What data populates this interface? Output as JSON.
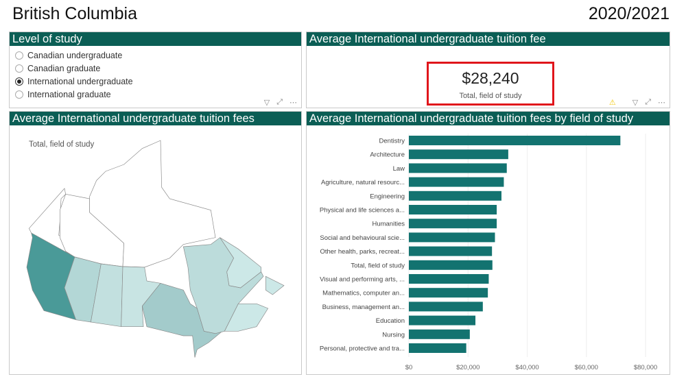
{
  "header": {
    "title": "British Columbia",
    "year": "2020/2021"
  },
  "level_panel": {
    "title": "Level of study",
    "options": [
      {
        "label": "Canadian undergraduate",
        "selected": false
      },
      {
        "label": "Canadian graduate",
        "selected": false
      },
      {
        "label": "International undergraduate",
        "selected": true
      },
      {
        "label": "International graduate",
        "selected": false
      }
    ]
  },
  "card_panel": {
    "title": "Average International undergraduate tuition fee",
    "value": "$28,240",
    "label": "Total, field of study"
  },
  "map_panel": {
    "title": "Average International undergraduate tuition fees",
    "label": "Total, field of study",
    "colors": {
      "BC": "#4a9a98",
      "AB": "#b3d7d6",
      "SK": "#c2e0df",
      "MB": "#c8e4e3",
      "ON": "#a3cbcb",
      "QC": "#bcdcdb",
      "NL": "#cce8e7",
      "MAR": "#cce8e7",
      "TERR": "#ffffff"
    }
  },
  "bar_panel": {
    "title": "Average International undergraduate tuition fees by field of study"
  },
  "chart_data": {
    "type": "bar",
    "orientation": "horizontal",
    "bar_color": "#137370",
    "categories": [
      "Dentistry",
      "Architecture",
      "Law",
      "Agriculture, natural resourc...",
      "Engineering",
      "Physical and life sciences a...",
      "Humanities",
      "Social and behavioural scie...",
      "Other health, parks, recreat...",
      "Total, field of study",
      "Visual and performing arts, ...",
      "Mathematics, computer an...",
      "Business, management an...",
      "Education",
      "Nursing",
      "Personal, protective and tra..."
    ],
    "values": [
      71500,
      33600,
      33100,
      32100,
      31300,
      29700,
      29700,
      29100,
      28100,
      28240,
      27000,
      26700,
      25000,
      22500,
      20600,
      19400
    ],
    "xlim": [
      0,
      80000
    ],
    "xticks": [
      "$0",
      "$20,000",
      "$40,000",
      "$60,000",
      "$80,000"
    ],
    "grid": true
  },
  "icons": {
    "filter": "filter-icon",
    "focus": "focus-mode-icon",
    "more": "more-options-icon",
    "warning": "warning-icon"
  }
}
